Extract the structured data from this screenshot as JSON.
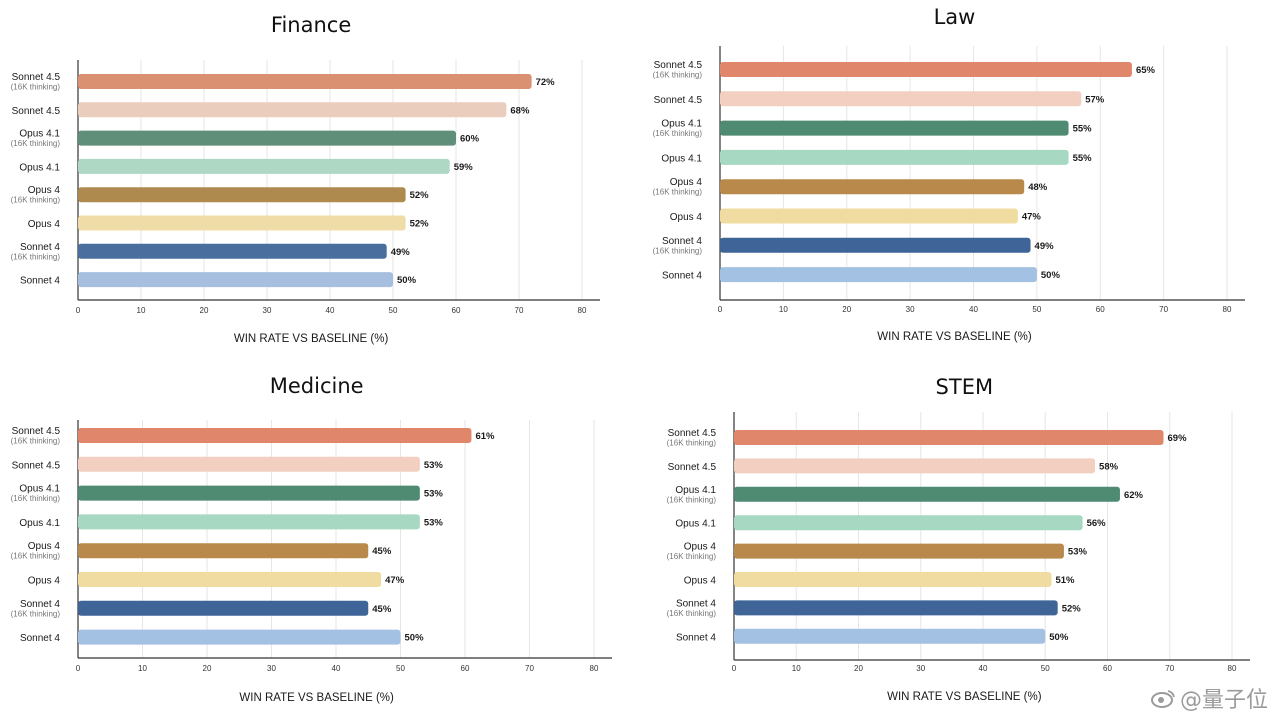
{
  "chart_data": [
    {
      "type": "bar",
      "title": "Finance",
      "xlabel": "WIN RATE VS BASELINE (%)",
      "xlim": [
        0,
        80
      ],
      "ticks": [
        0,
        10,
        20,
        30,
        40,
        50,
        60,
        70,
        80
      ],
      "grid": true,
      "categories": [
        {
          "name": "Sonnet 4.5",
          "note": "(16K thinking)"
        },
        {
          "name": "Sonnet 4.5",
          "note": ""
        },
        {
          "name": "Opus 4.1",
          "note": "(16K thinking)"
        },
        {
          "name": "Opus 4.1",
          "note": ""
        },
        {
          "name": "Opus 4",
          "note": "(16K thinking)"
        },
        {
          "name": "Opus 4",
          "note": ""
        },
        {
          "name": "Sonnet 4",
          "note": "(16K thinking)"
        },
        {
          "name": "Sonnet 4",
          "note": ""
        }
      ],
      "values": [
        72,
        68,
        60,
        59,
        52,
        52,
        49,
        50
      ],
      "labels": [
        "72%",
        "68%",
        "60%",
        "59%",
        "52%",
        "52%",
        "49%",
        "50%"
      ],
      "bar_colors": [
        "#d99171",
        "#ebcdbd",
        "#5f8e79",
        "#aed7c4",
        "#af8a4e",
        "#f0dca6",
        "#4a6e9e",
        "#a6bfde"
      ]
    },
    {
      "type": "bar",
      "title": "Law",
      "xlabel": "WIN RATE VS BASELINE (%)",
      "xlim": [
        0,
        80
      ],
      "ticks": [
        0,
        10,
        20,
        30,
        40,
        50,
        60,
        70,
        80
      ],
      "grid": true,
      "categories": [
        {
          "name": "Sonnet 4.5",
          "note": "(16K thinking)"
        },
        {
          "name": "Sonnet 4.5",
          "note": ""
        },
        {
          "name": "Opus 4.1",
          "note": "(16K thinking)"
        },
        {
          "name": "Opus 4.1",
          "note": ""
        },
        {
          "name": "Opus 4",
          "note": "(16K thinking)"
        },
        {
          "name": "Opus 4",
          "note": ""
        },
        {
          "name": "Sonnet 4",
          "note": "(16K thinking)"
        },
        {
          "name": "Sonnet 4",
          "note": ""
        }
      ],
      "values": [
        65,
        57,
        55,
        55,
        48,
        47,
        49,
        50
      ],
      "labels": [
        "65%",
        "57%",
        "55%",
        "55%",
        "48%",
        "47%",
        "49%",
        "50%"
      ],
      "bar_colors": [
        "#e0866a",
        "#f2cfc0",
        "#4f8a72",
        "#a7d8c2",
        "#b8894a",
        "#f0dca0",
        "#3f6598",
        "#a3c1e2"
      ]
    },
    {
      "type": "bar",
      "title": "Medicine",
      "xlabel": "WIN RATE VS BASELINE (%)",
      "xlim": [
        0,
        80
      ],
      "ticks": [
        0,
        10,
        20,
        30,
        40,
        50,
        60,
        70,
        80
      ],
      "grid": true,
      "categories": [
        {
          "name": "Sonnet 4.5",
          "note": "(16K thinking)"
        },
        {
          "name": "Sonnet 4.5",
          "note": ""
        },
        {
          "name": "Opus 4.1",
          "note": "(16K thinking)"
        },
        {
          "name": "Opus 4.1",
          "note": ""
        },
        {
          "name": "Opus 4",
          "note": "(16K thinking)"
        },
        {
          "name": "Opus 4",
          "note": ""
        },
        {
          "name": "Sonnet 4",
          "note": "(16K thinking)"
        },
        {
          "name": "Sonnet 4",
          "note": ""
        }
      ],
      "values": [
        61,
        53,
        53,
        53,
        45,
        47,
        45,
        50
      ],
      "labels": [
        "61%",
        "53%",
        "53%",
        "53%",
        "45%",
        "47%",
        "45%",
        "50%"
      ],
      "bar_colors": [
        "#e0866a",
        "#f2cfc0",
        "#4f8a72",
        "#a7d8c2",
        "#b8894a",
        "#f0dca0",
        "#3f6598",
        "#a3c1e2"
      ]
    },
    {
      "type": "bar",
      "title": "STEM",
      "xlabel": "WIN RATE VS BASELINE (%)",
      "xlim": [
        0,
        80
      ],
      "ticks": [
        0,
        10,
        20,
        30,
        40,
        50,
        60,
        70,
        80
      ],
      "grid": true,
      "categories": [
        {
          "name": "Sonnet 4.5",
          "note": "(16K thinking)"
        },
        {
          "name": "Sonnet 4.5",
          "note": ""
        },
        {
          "name": "Opus 4.1",
          "note": "(16K thinking)"
        },
        {
          "name": "Opus 4.1",
          "note": ""
        },
        {
          "name": "Opus 4",
          "note": "(16K thinking)"
        },
        {
          "name": "Opus 4",
          "note": ""
        },
        {
          "name": "Sonnet 4",
          "note": "(16K thinking)"
        },
        {
          "name": "Sonnet 4",
          "note": ""
        }
      ],
      "values": [
        69,
        58,
        62,
        56,
        53,
        51,
        52,
        50
      ],
      "labels": [
        "69%",
        "58%",
        "62%",
        "56%",
        "53%",
        "51%",
        "52%",
        "50%"
      ],
      "bar_colors": [
        "#e0866a",
        "#f2cfc0",
        "#4f8a72",
        "#a7d8c2",
        "#b8894a",
        "#f0dca0",
        "#3f6598",
        "#a3c1e2"
      ]
    }
  ],
  "watermark": {
    "text": "@量子位",
    "icon": "weibo-eye-icon"
  }
}
